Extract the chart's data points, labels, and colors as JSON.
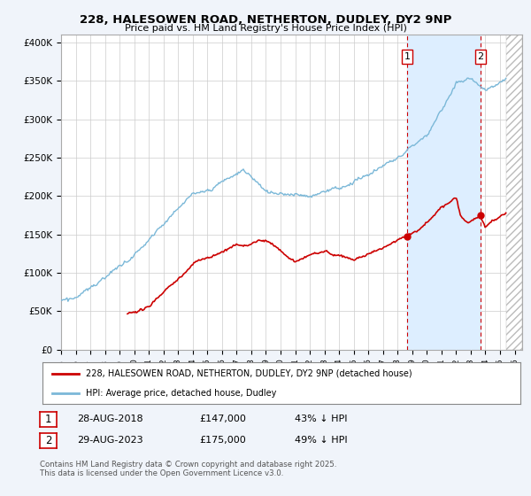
{
  "title1": "228, HALESOWEN ROAD, NETHERTON, DUDLEY, DY2 9NP",
  "title2": "Price paid vs. HM Land Registry's House Price Index (HPI)",
  "ylim": [
    0,
    410000
  ],
  "yticks": [
    0,
    50000,
    100000,
    150000,
    200000,
    250000,
    300000,
    350000,
    400000
  ],
  "ytick_labels": [
    "£0",
    "£50K",
    "£100K",
    "£150K",
    "£200K",
    "£250K",
    "£300K",
    "£350K",
    "£400K"
  ],
  "xlim_start": 1995.0,
  "xlim_end": 2026.5,
  "hpi_color": "#7bb8d8",
  "price_color": "#cc0000",
  "dot_color": "#cc0000",
  "marker1_x": 2018.65,
  "marker1_y": 147000,
  "marker1_label": "1",
  "marker2_x": 2023.66,
  "marker2_y": 175000,
  "marker2_label": "2",
  "vline1_x": 2018.65,
  "vline2_x": 2023.66,
  "shade_color": "#ddeeff",
  "legend_line1": "228, HALESOWEN ROAD, NETHERTON, DUDLEY, DY2 9NP (detached house)",
  "legend_line2": "HPI: Average price, detached house, Dudley",
  "table_row1_num": "1",
  "table_row1_date": "28-AUG-2018",
  "table_row1_price": "£147,000",
  "table_row1_hpi": "43% ↓ HPI",
  "table_row2_num": "2",
  "table_row2_date": "29-AUG-2023",
  "table_row2_price": "£175,000",
  "table_row2_hpi": "49% ↓ HPI",
  "footer": "Contains HM Land Registry data © Crown copyright and database right 2025.\nThis data is licensed under the Open Government Licence v3.0.",
  "bg_color": "#f0f4fa",
  "plot_bg": "#ffffff",
  "grid_color": "#cccccc",
  "hatch_start": 2025.42
}
